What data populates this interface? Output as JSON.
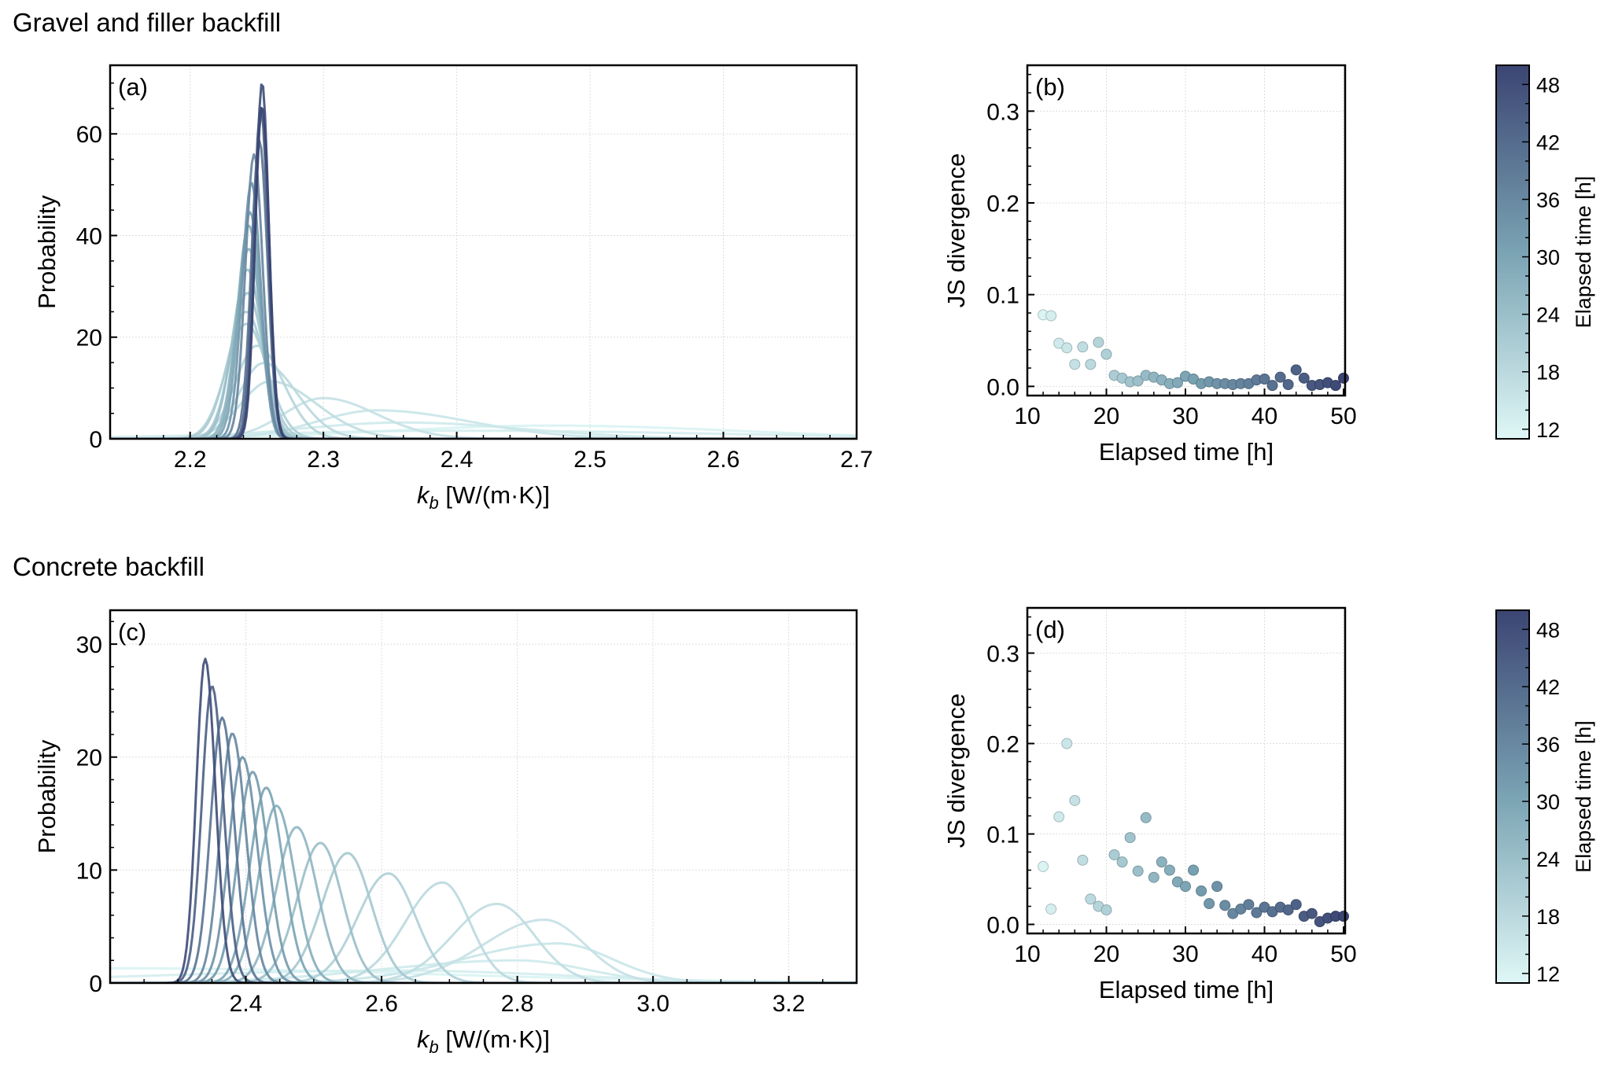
{
  "figure": {
    "section_titles": [
      "Gravel and filler backfill",
      "Concrete backfill"
    ],
    "colormap": {
      "low": "#dff7f6",
      "mid": "#7aa3b3",
      "high": "#3b4573"
    }
  },
  "chart_data": [
    {
      "id": "a",
      "type": "line",
      "panel_label": "(a)",
      "section": "Gravel and filler backfill",
      "title": "",
      "xlabel_main": "k",
      "xlabel_sub": "b",
      "xlabel_rest": " [W/(m·K)]",
      "ylabel": "Probability",
      "xlim": [
        2.14,
        2.7
      ],
      "ylim": [
        0,
        73.5
      ],
      "xticks": [
        2.2,
        2.3,
        2.4,
        2.5,
        2.6,
        2.7
      ],
      "xtick_labels": [
        "2.2",
        "2.3",
        "2.4",
        "2.5",
        "2.6",
        "2.7"
      ],
      "yticks": [
        0,
        20,
        40,
        60
      ],
      "ytick_labels": [
        "0",
        "20",
        "40",
        "60"
      ],
      "grid": true,
      "color_by": "elapsed_time_h",
      "series_note": "Kernel density curves of k_b posterior, one per elapsed hour; described by mode, peak density and left/right spread",
      "series": [
        {
          "hour": 12,
          "mode": 2.47,
          "peak": 2.6,
          "sl": 0.12,
          "sr": 0.14
        },
        {
          "hour": 13,
          "mode": 2.4,
          "peak": 1.6,
          "sl": 0.15,
          "sr": 0.2
        },
        {
          "hour": 14,
          "mode": 2.36,
          "peak": 3.2,
          "sl": 0.08,
          "sr": 0.09
        },
        {
          "hour": 15,
          "mode": 2.34,
          "peak": 5.6,
          "sl": 0.045,
          "sr": 0.07
        },
        {
          "hour": 16,
          "mode": 2.3,
          "peak": 8.0,
          "sl": 0.03,
          "sr": 0.04
        },
        {
          "hour": 17,
          "mode": 2.26,
          "peak": 11.3,
          "sl": 0.022,
          "sr": 0.035
        },
        {
          "hour": 18,
          "mode": 2.255,
          "peak": 14.9,
          "sl": 0.018,
          "sr": 0.025
        },
        {
          "hour": 19,
          "mode": 2.25,
          "peak": 18.3,
          "sl": 0.016,
          "sr": 0.02
        },
        {
          "hour": 20,
          "mode": 2.242,
          "peak": 22.6,
          "sl": 0.015,
          "sr": 0.016
        },
        {
          "hour": 21,
          "mode": 2.242,
          "peak": 25.0,
          "sl": 0.014,
          "sr": 0.014
        },
        {
          "hour": 22,
          "mode": 2.243,
          "peak": 28.7,
          "sl": 0.012,
          "sr": 0.012
        },
        {
          "hour": 24,
          "mode": 2.243,
          "peak": 33.3,
          "sl": 0.011,
          "sr": 0.011
        },
        {
          "hour": 26,
          "mode": 2.244,
          "peak": 37.4,
          "sl": 0.0095,
          "sr": 0.0095
        },
        {
          "hour": 28,
          "mode": 2.244,
          "peak": 42.0,
          "sl": 0.0085,
          "sr": 0.0085
        },
        {
          "hour": 30,
          "mode": 2.245,
          "peak": 44.6,
          "sl": 0.008,
          "sr": 0.008
        },
        {
          "hour": 33,
          "mode": 2.246,
          "peak": 50.4,
          "sl": 0.007,
          "sr": 0.007
        },
        {
          "hour": 36,
          "mode": 2.248,
          "peak": 56.0,
          "sl": 0.0065,
          "sr": 0.0065
        },
        {
          "hour": 40,
          "mode": 2.252,
          "peak": 58.6,
          "sl": 0.006,
          "sr": 0.006
        },
        {
          "hour": 44,
          "mode": 2.253,
          "peak": 65.1,
          "sl": 0.0055,
          "sr": 0.0055
        },
        {
          "hour": 48,
          "mode": 2.254,
          "peak": 70.2,
          "sl": 0.005,
          "sr": 0.005
        },
        {
          "hour": 50,
          "mode": 2.254,
          "peak": 65.5,
          "sl": 0.0053,
          "sr": 0.0053
        }
      ]
    },
    {
      "id": "b",
      "type": "scatter",
      "panel_label": "(b)",
      "section": "Gravel and filler backfill",
      "xlabel": "Elapsed time [h]",
      "ylabel": "JS divergence",
      "xlim": [
        10,
        50.2
      ],
      "ylim": [
        -0.01,
        0.35
      ],
      "xticks": [
        10,
        20,
        30,
        40,
        50
      ],
      "xtick_labels": [
        "10",
        "20",
        "30",
        "40",
        "50"
      ],
      "yticks": [
        0.0,
        0.1,
        0.2,
        0.3
      ],
      "ytick_labels": [
        "0.0",
        "0.1",
        "0.2",
        "0.3"
      ],
      "grid": true,
      "x": [
        12,
        13,
        14,
        15,
        16,
        17,
        18,
        19,
        20,
        21,
        22,
        23,
        24,
        25,
        26,
        27,
        28,
        29,
        30,
        31,
        32,
        33,
        34,
        35,
        36,
        37,
        38,
        39,
        40,
        41,
        42,
        43,
        44,
        45,
        46,
        47,
        48,
        49,
        50
      ],
      "y": [
        0.078,
        0.077,
        0.047,
        0.042,
        0.024,
        0.043,
        0.024,
        0.048,
        0.035,
        0.012,
        0.009,
        0.005,
        0.006,
        0.012,
        0.01,
        0.007,
        0.003,
        0.004,
        0.011,
        0.008,
        0.003,
        0.005,
        0.003,
        0.003,
        0.002,
        0.003,
        0.003,
        0.007,
        0.008,
        0.001,
        0.01,
        0.002,
        0.018,
        0.009,
        0.001,
        0.002,
        0.004,
        0.001,
        0.009
      ],
      "colorbar": {
        "label": "Elapsed time [h]",
        "range": [
          11,
          50
        ],
        "ticks": [
          12,
          18,
          24,
          30,
          36,
          42,
          48
        ],
        "tick_labels": [
          "12",
          "18",
          "24",
          "30",
          "36",
          "42",
          "48"
        ]
      }
    },
    {
      "id": "c",
      "type": "line",
      "panel_label": "(c)",
      "section": "Concrete backfill",
      "xlabel_main": "k",
      "xlabel_sub": "b",
      "xlabel_rest": " [W/(m·K)]",
      "ylabel": "Probability",
      "xlim": [
        2.2,
        3.3
      ],
      "ylim": [
        0,
        33
      ],
      "xticks": [
        2.4,
        2.6,
        2.8,
        3.0,
        3.2
      ],
      "xtick_labels": [
        "2.4",
        "2.6",
        "2.8",
        "3.0",
        "3.2"
      ],
      "yticks": [
        0,
        10,
        20,
        30
      ],
      "ytick_labels": [
        "0",
        "10",
        "20",
        "30"
      ],
      "grid": true,
      "color_by": "elapsed_time_h",
      "series_note": "Kernel density curves of k_b posterior, one per elapsed hour; described by mode, peak density and left/right spread",
      "series": [
        {
          "hour": 12,
          "mode": 2.22,
          "peak": 1.3,
          "sl": 0.4,
          "sr": 0.45
        },
        {
          "hour": 13,
          "mode": 2.62,
          "peak": 1.1,
          "sl": 0.35,
          "sr": 0.25
        },
        {
          "hour": 14,
          "mode": 2.8,
          "peak": 2.0,
          "sl": 0.2,
          "sr": 0.1
        },
        {
          "hour": 15,
          "mode": 2.86,
          "peak": 3.5,
          "sl": 0.14,
          "sr": 0.08
        },
        {
          "hour": 16,
          "mode": 2.84,
          "peak": 5.6,
          "sl": 0.09,
          "sr": 0.06
        },
        {
          "hour": 17,
          "mode": 2.77,
          "peak": 7.0,
          "sl": 0.065,
          "sr": 0.055
        },
        {
          "hour": 18,
          "mode": 2.69,
          "peak": 8.9,
          "sl": 0.055,
          "sr": 0.04
        },
        {
          "hour": 20,
          "mode": 2.61,
          "peak": 9.7,
          "sl": 0.045,
          "sr": 0.04
        },
        {
          "hour": 22,
          "mode": 2.55,
          "peak": 11.5,
          "sl": 0.038,
          "sr": 0.035
        },
        {
          "hour": 24,
          "mode": 2.51,
          "peak": 12.4,
          "sl": 0.034,
          "sr": 0.032
        },
        {
          "hour": 26,
          "mode": 2.475,
          "peak": 13.8,
          "sl": 0.03,
          "sr": 0.03
        },
        {
          "hour": 28,
          "mode": 2.445,
          "peak": 15.7,
          "sl": 0.026,
          "sr": 0.027
        },
        {
          "hour": 30,
          "mode": 2.43,
          "peak": 17.3,
          "sl": 0.024,
          "sr": 0.025
        },
        {
          "hour": 32,
          "mode": 2.41,
          "peak": 18.7,
          "sl": 0.022,
          "sr": 0.023
        },
        {
          "hour": 34,
          "mode": 2.395,
          "peak": 20.0,
          "sl": 0.02,
          "sr": 0.022
        },
        {
          "hour": 36,
          "mode": 2.38,
          "peak": 22.1,
          "sl": 0.018,
          "sr": 0.02
        },
        {
          "hour": 40,
          "mode": 2.365,
          "peak": 23.5,
          "sl": 0.017,
          "sr": 0.018
        },
        {
          "hour": 44,
          "mode": 2.35,
          "peak": 26.3,
          "sl": 0.015,
          "sr": 0.017
        },
        {
          "hour": 48,
          "mode": 2.34,
          "peak": 28.7,
          "sl": 0.013,
          "sr": 0.015
        }
      ]
    },
    {
      "id": "d",
      "type": "scatter",
      "panel_label": "(d)",
      "section": "Concrete backfill",
      "xlabel": "Elapsed time [h]",
      "ylabel": "JS divergence",
      "xlim": [
        10,
        50.2
      ],
      "ylim": [
        -0.01,
        0.35
      ],
      "xticks": [
        10,
        20,
        30,
        40,
        50
      ],
      "xtick_labels": [
        "10",
        "20",
        "30",
        "40",
        "50"
      ],
      "yticks": [
        0.0,
        0.1,
        0.2,
        0.3
      ],
      "ytick_labels": [
        "0.0",
        "0.1",
        "0.2",
        "0.3"
      ],
      "grid": true,
      "x": [
        12,
        13,
        14,
        15,
        16,
        17,
        18,
        19,
        20,
        21,
        22,
        23,
        24,
        25,
        26,
        27,
        28,
        29,
        30,
        31,
        32,
        33,
        34,
        35,
        36,
        37,
        38,
        39,
        40,
        41,
        42,
        43,
        44,
        45,
        46,
        47,
        48,
        49,
        50
      ],
      "y": [
        0.064,
        0.017,
        0.119,
        0.2,
        0.137,
        0.071,
        0.028,
        0.02,
        0.016,
        0.077,
        0.069,
        0.096,
        0.059,
        0.118,
        0.052,
        0.069,
        0.06,
        0.047,
        0.042,
        0.06,
        0.037,
        0.023,
        0.042,
        0.021,
        0.012,
        0.017,
        0.022,
        0.013,
        0.019,
        0.014,
        0.019,
        0.016,
        0.022,
        0.009,
        0.012,
        0.003,
        0.007,
        0.009,
        0.009
      ],
      "colorbar": {
        "label": "Elapsed time [h]",
        "range": [
          11,
          50
        ],
        "ticks": [
          12,
          18,
          24,
          30,
          36,
          42,
          48
        ],
        "tick_labels": [
          "12",
          "18",
          "24",
          "30",
          "36",
          "42",
          "48"
        ]
      }
    }
  ]
}
